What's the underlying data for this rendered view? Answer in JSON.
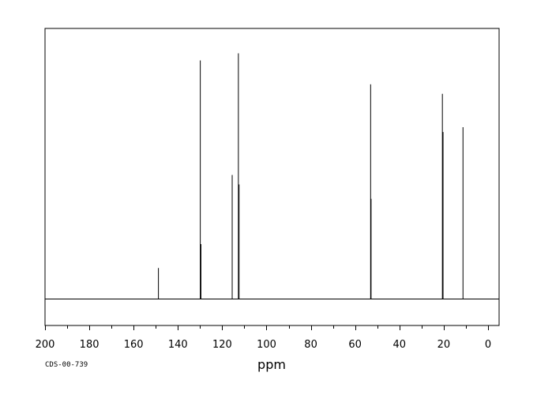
{
  "chart_data": {
    "type": "line",
    "title": "",
    "xlabel": "ppm",
    "ylabel": "",
    "xlim": [
      200,
      -5
    ],
    "x_reversed": true,
    "x_ticks": [
      200,
      180,
      160,
      140,
      120,
      100,
      80,
      60,
      40,
      20,
      0
    ],
    "x_tick_labels": [
      "200",
      "180",
      "160",
      "140",
      "120",
      "100",
      "80",
      "60",
      "40",
      "20",
      "0"
    ],
    "ylim": [
      0,
      1
    ],
    "grid": false,
    "peaks": [
      {
        "ppm": 148.8,
        "intensity": 0.13
      },
      {
        "ppm": 129.9,
        "intensity": 1.0
      },
      {
        "ppm": 129.6,
        "intensity": 0.23
      },
      {
        "ppm": 115.5,
        "intensity": 0.52
      },
      {
        "ppm": 112.7,
        "intensity": 1.03
      },
      {
        "ppm": 112.4,
        "intensity": 0.48
      },
      {
        "ppm": 53.0,
        "intensity": 0.9
      },
      {
        "ppm": 52.8,
        "intensity": 0.42
      },
      {
        "ppm": 20.6,
        "intensity": 0.86
      },
      {
        "ppm": 20.3,
        "intensity": 0.7
      },
      {
        "ppm": 11.3,
        "intensity": 0.72
      }
    ]
  },
  "footnote": "CDS-00-739"
}
